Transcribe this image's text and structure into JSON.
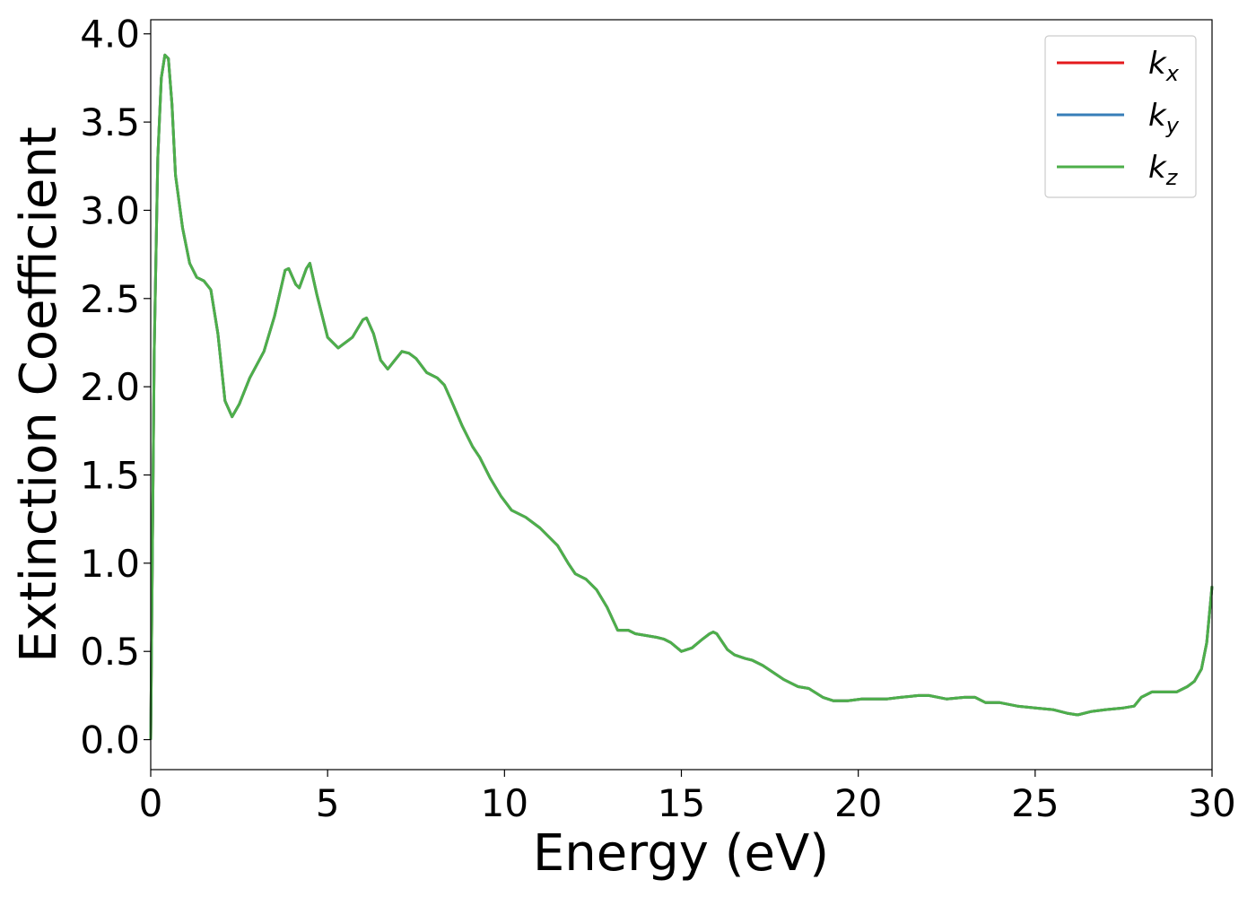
{
  "chart_data": {
    "type": "line",
    "xlabel": "Energy (eV)",
    "ylabel": "Extinction Coefficient",
    "xlim": [
      0,
      30
    ],
    "ylim": [
      -0.17,
      4.08
    ],
    "xticks": [
      0,
      5,
      10,
      15,
      20,
      25,
      30
    ],
    "xtick_labels": [
      "0",
      "5",
      "10",
      "15",
      "20",
      "25",
      "30"
    ],
    "yticks": [
      0.0,
      0.5,
      1.0,
      1.5,
      2.0,
      2.5,
      3.0,
      3.5,
      4.0
    ],
    "ytick_labels": [
      "0.0",
      "0.5",
      "1.0",
      "1.5",
      "2.0",
      "2.5",
      "3.0",
      "3.5",
      "4.0"
    ],
    "grid": false,
    "legend_position": "top-right",
    "series": [
      {
        "name": "k",
        "subscript": "x",
        "color": "#e41a1c"
      },
      {
        "name": "k",
        "subscript": "y",
        "color": "#377eb8"
      },
      {
        "name": "k",
        "subscript": "z",
        "color": "#4daf4a"
      }
    ],
    "x": [
      0,
      0.1,
      0.2,
      0.3,
      0.4,
      0.5,
      0.6,
      0.7,
      0.9,
      1.1,
      1.3,
      1.5,
      1.7,
      1.9,
      2.1,
      2.3,
      2.5,
      2.8,
      3.2,
      3.5,
      3.8,
      3.9,
      4.1,
      4.2,
      4.4,
      4.5,
      4.7,
      5.0,
      5.3,
      5.7,
      6.0,
      6.1,
      6.3,
      6.5,
      6.7,
      6.9,
      7.1,
      7.3,
      7.5,
      7.8,
      8.1,
      8.3,
      8.5,
      8.8,
      9.1,
      9.3,
      9.6,
      9.9,
      10.2,
      10.6,
      11.0,
      11.5,
      11.8,
      12.0,
      12.3,
      12.6,
      12.9,
      13.2,
      13.5,
      13.7,
      14.0,
      14.3,
      14.5,
      14.7,
      15.0,
      15.3,
      15.6,
      15.8,
      15.9,
      16.0,
      16.3,
      16.5,
      16.8,
      17.0,
      17.3,
      17.6,
      17.9,
      18.3,
      18.6,
      19.0,
      19.3,
      19.7,
      20.1,
      20.4,
      20.8,
      21.2,
      21.7,
      22.0,
      22.5,
      23.0,
      23.3,
      23.6,
      24.0,
      24.5,
      25.0,
      25.5,
      25.9,
      26.2,
      26.6,
      27.0,
      27.5,
      27.8,
      28.0,
      28.3,
      28.7,
      29.0,
      29.3,
      29.5,
      29.7,
      29.85,
      30.0
    ],
    "values": [
      0.0,
      2.2,
      3.3,
      3.75,
      3.88,
      3.86,
      3.6,
      3.2,
      2.9,
      2.7,
      2.62,
      2.6,
      2.55,
      2.3,
      1.92,
      1.83,
      1.9,
      2.05,
      2.2,
      2.4,
      2.66,
      2.67,
      2.58,
      2.56,
      2.67,
      2.7,
      2.52,
      2.28,
      2.22,
      2.28,
      2.38,
      2.39,
      2.3,
      2.15,
      2.1,
      2.15,
      2.2,
      2.19,
      2.16,
      2.08,
      2.05,
      2.01,
      1.92,
      1.78,
      1.66,
      1.6,
      1.48,
      1.38,
      1.3,
      1.26,
      1.2,
      1.1,
      1.0,
      0.94,
      0.91,
      0.85,
      0.75,
      0.62,
      0.62,
      0.6,
      0.59,
      0.58,
      0.57,
      0.55,
      0.5,
      0.52,
      0.57,
      0.6,
      0.61,
      0.6,
      0.51,
      0.48,
      0.46,
      0.45,
      0.42,
      0.38,
      0.34,
      0.3,
      0.29,
      0.24,
      0.22,
      0.22,
      0.23,
      0.23,
      0.23,
      0.24,
      0.25,
      0.25,
      0.23,
      0.24,
      0.24,
      0.21,
      0.21,
      0.19,
      0.18,
      0.17,
      0.15,
      0.14,
      0.16,
      0.17,
      0.18,
      0.19,
      0.24,
      0.27,
      0.27,
      0.27,
      0.3,
      0.33,
      0.4,
      0.55,
      0.87
    ]
  }
}
